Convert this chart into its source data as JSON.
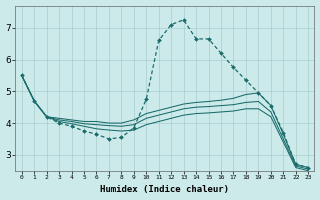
{
  "xlabel": "Humidex (Indice chaleur)",
  "bg_color": "#cceaea",
  "grid_color": "#aacccc",
  "line_color": "#1a6b6b",
  "xlim": [
    -0.5,
    23.5
  ],
  "ylim": [
    2.5,
    7.7
  ],
  "yticks": [
    3,
    4,
    5,
    6,
    7
  ],
  "xticks": [
    0,
    1,
    2,
    3,
    4,
    5,
    6,
    7,
    8,
    9,
    10,
    11,
    12,
    13,
    14,
    15,
    16,
    17,
    18,
    19,
    20,
    21,
    22,
    23
  ],
  "xtick_labels": [
    "0",
    "1",
    "2",
    "3",
    "4",
    "5",
    "6",
    "7",
    "8",
    "9",
    "10",
    "11",
    "12",
    "13",
    "14",
    "15",
    "16",
    "17",
    "18",
    "19",
    "20",
    "21",
    "22",
    "23"
  ],
  "line1_x": [
    0,
    1,
    2,
    3,
    4,
    5,
    6,
    7,
    8,
    9,
    10,
    11,
    12,
    13,
    14,
    15,
    16,
    17,
    18,
    19,
    20,
    21,
    22,
    23
  ],
  "line1_y": [
    5.5,
    4.7,
    4.2,
    4.0,
    3.9,
    3.75,
    3.65,
    3.5,
    3.55,
    3.85,
    4.75,
    6.6,
    7.1,
    7.25,
    6.65,
    6.65,
    6.2,
    5.75,
    5.35,
    4.95,
    4.55,
    3.7,
    2.7,
    2.6
  ],
  "line2_x": [
    0,
    1,
    2,
    3,
    4,
    5,
    6,
    7,
    8,
    9,
    10,
    11,
    12,
    13,
    14,
    15,
    16,
    17,
    18,
    19,
    20,
    21,
    22,
    23
  ],
  "line2_y": [
    5.5,
    4.7,
    4.2,
    4.15,
    4.1,
    4.05,
    4.05,
    4.0,
    4.0,
    4.1,
    4.3,
    4.4,
    4.5,
    4.6,
    4.65,
    4.68,
    4.72,
    4.78,
    4.9,
    4.95,
    4.55,
    3.65,
    2.7,
    2.6
  ],
  "line3_x": [
    0,
    1,
    2,
    3,
    4,
    5,
    6,
    7,
    8,
    9,
    10,
    11,
    12,
    13,
    14,
    15,
    16,
    17,
    18,
    19,
    20,
    21,
    22,
    23
  ],
  "line3_y": [
    5.5,
    4.7,
    4.2,
    4.1,
    4.05,
    3.98,
    3.95,
    3.92,
    3.9,
    3.95,
    4.15,
    4.25,
    4.35,
    4.45,
    4.5,
    4.52,
    4.55,
    4.58,
    4.65,
    4.68,
    4.35,
    3.5,
    2.65,
    2.55
  ],
  "line4_x": [
    0,
    1,
    2,
    3,
    4,
    5,
    6,
    7,
    8,
    9,
    10,
    11,
    12,
    13,
    14,
    15,
    16,
    17,
    18,
    19,
    20,
    21,
    22,
    23
  ],
  "line4_y": [
    5.5,
    4.7,
    4.2,
    4.05,
    3.98,
    3.9,
    3.82,
    3.78,
    3.75,
    3.78,
    3.95,
    4.05,
    4.15,
    4.25,
    4.3,
    4.32,
    4.35,
    4.38,
    4.45,
    4.45,
    4.2,
    3.4,
    2.6,
    2.5
  ]
}
